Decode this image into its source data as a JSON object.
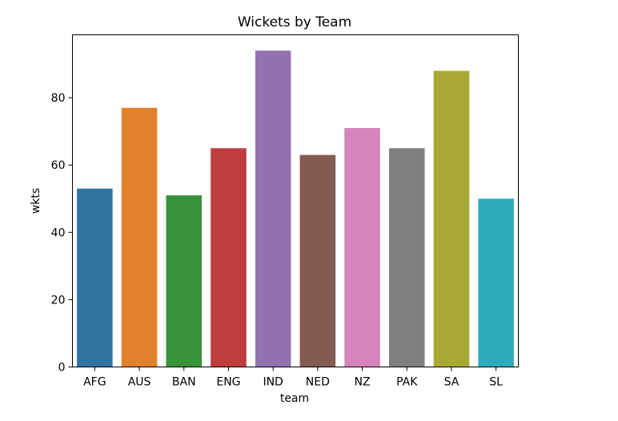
{
  "chart_data": {
    "type": "bar",
    "title": "Wickets by Team",
    "xlabel": "team",
    "ylabel": "wkts",
    "categories": [
      "AFG",
      "AUS",
      "BAN",
      "ENG",
      "IND",
      "NED",
      "NZ",
      "PAK",
      "SA",
      "SL"
    ],
    "values": [
      53,
      77,
      51,
      65,
      94,
      63,
      71,
      65,
      88,
      50
    ],
    "colors": [
      "#3274a1",
      "#e1812c",
      "#3a923a",
      "#c03d3e",
      "#9372b2",
      "#845b53",
      "#d684bd",
      "#7f7f7f",
      "#a9aa35",
      "#2eabb8"
    ],
    "ylim": [
      0,
      98.7
    ],
    "yticks": [
      0,
      20,
      40,
      60,
      80
    ],
    "grid": false,
    "legend": "none"
  }
}
